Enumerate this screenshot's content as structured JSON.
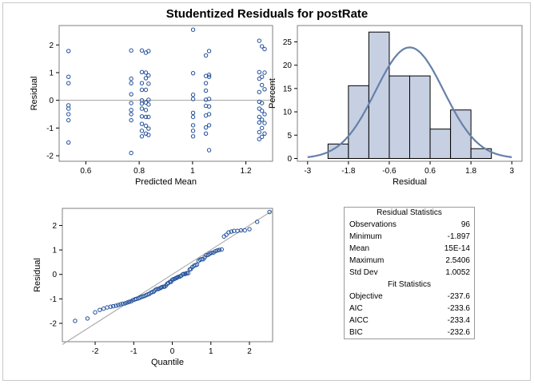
{
  "title": "Studentized Residuals for postRate",
  "chart_data": [
    {
      "type": "scatter",
      "panel": "residual-vs-predicted",
      "xlabel": "Predicted Mean",
      "ylabel": "Residual",
      "xlim": [
        0.5,
        1.3
      ],
      "ylim": [
        -2.2,
        2.7
      ],
      "xticks": [
        0.6,
        0.8,
        1.0,
        1.2
      ],
      "yticks": [
        -2,
        -1,
        0,
        1,
        2
      ],
      "reference_line_y": 0,
      "points": [
        [
          0.535,
          1.78
        ],
        [
          0.535,
          0.85
        ],
        [
          0.535,
          0.62
        ],
        [
          0.535,
          -0.18
        ],
        [
          0.535,
          -0.3
        ],
        [
          0.535,
          -0.5
        ],
        [
          0.535,
          -0.72
        ],
        [
          0.535,
          -1.52
        ],
        [
          0.77,
          1.8
        ],
        [
          0.77,
          0.78
        ],
        [
          0.77,
          0.62
        ],
        [
          0.77,
          0.22
        ],
        [
          0.77,
          -0.1
        ],
        [
          0.77,
          -0.35
        ],
        [
          0.77,
          -0.5
        ],
        [
          0.77,
          -0.72
        ],
        [
          0.77,
          -1.9
        ],
        [
          0.81,
          1.8
        ],
        [
          0.81,
          1.02
        ],
        [
          0.81,
          0.62
        ],
        [
          0.81,
          0.38
        ],
        [
          0.81,
          0.0
        ],
        [
          0.81,
          -0.12
        ],
        [
          0.81,
          -0.3
        ],
        [
          0.81,
          -0.58
        ],
        [
          0.81,
          -0.85
        ],
        [
          0.81,
          -1.1
        ],
        [
          0.81,
          -1.3
        ],
        [
          0.825,
          1.72
        ],
        [
          0.825,
          1.0
        ],
        [
          0.825,
          0.8
        ],
        [
          0.825,
          0.38
        ],
        [
          0.825,
          -0.08
        ],
        [
          0.825,
          -0.35
        ],
        [
          0.825,
          -0.6
        ],
        [
          0.825,
          -0.92
        ],
        [
          0.825,
          -1.2
        ],
        [
          0.835,
          1.78
        ],
        [
          0.835,
          0.9
        ],
        [
          0.835,
          0.6
        ],
        [
          0.835,
          0.02
        ],
        [
          0.835,
          -0.15
        ],
        [
          0.835,
          -0.6
        ],
        [
          0.835,
          -1.02
        ],
        [
          0.835,
          -1.25
        ],
        [
          1.002,
          2.55
        ],
        [
          1.002,
          0.98
        ],
        [
          1.002,
          0.2
        ],
        [
          1.002,
          0.05
        ],
        [
          1.002,
          -0.45
        ],
        [
          1.002,
          -0.6
        ],
        [
          1.002,
          -0.9
        ],
        [
          1.002,
          -1.1
        ],
        [
          1.002,
          -1.3
        ],
        [
          1.05,
          1.62
        ],
        [
          1.05,
          0.88
        ],
        [
          1.05,
          0.62
        ],
        [
          1.05,
          0.35
        ],
        [
          1.05,
          0.02
        ],
        [
          1.05,
          -0.2
        ],
        [
          1.05,
          -0.55
        ],
        [
          1.05,
          -0.98
        ],
        [
          1.05,
          -1.2
        ],
        [
          1.062,
          1.78
        ],
        [
          1.062,
          0.92
        ],
        [
          1.062,
          0.85
        ],
        [
          1.062,
          0.05
        ],
        [
          1.062,
          -0.22
        ],
        [
          1.062,
          -0.5
        ],
        [
          1.062,
          -0.9
        ],
        [
          1.062,
          -1.8
        ],
        [
          1.25,
          2.15
        ],
        [
          1.25,
          1.02
        ],
        [
          1.25,
          0.78
        ],
        [
          1.25,
          0.3
        ],
        [
          1.25,
          -0.05
        ],
        [
          1.25,
          -0.3
        ],
        [
          1.25,
          -0.6
        ],
        [
          1.25,
          -0.8
        ],
        [
          1.25,
          -1.15
        ],
        [
          1.25,
          -1.4
        ],
        [
          1.26,
          1.95
        ],
        [
          1.26,
          0.85
        ],
        [
          1.26,
          0.55
        ],
        [
          1.26,
          -0.1
        ],
        [
          1.26,
          -0.38
        ],
        [
          1.26,
          -0.7
        ],
        [
          1.26,
          -1.0
        ],
        [
          1.26,
          -1.32
        ],
        [
          1.27,
          1.85
        ],
        [
          1.27,
          1.0
        ],
        [
          1.27,
          0.4
        ],
        [
          1.27,
          -0.5
        ],
        [
          1.27,
          -0.82
        ],
        [
          1.27,
          -1.2
        ]
      ]
    },
    {
      "type": "bar",
      "panel": "histogram",
      "xlabel": "Residual",
      "ylabel": "Percent",
      "xlim": [
        -3.3,
        3.3
      ],
      "ylim": [
        -0.6,
        28.5
      ],
      "xticks": [
        -3,
        -1.8,
        -0.6,
        0.6,
        1.8,
        3
      ],
      "xtick_labels": [
        "-3",
        "-1.8",
        "-0.6",
        "0.6",
        "1.8",
        "3"
      ],
      "yticks": [
        0,
        5,
        10,
        15,
        20,
        25
      ],
      "bin_edges": [
        -2.4,
        -1.8,
        -1.2,
        -0.6,
        0.0,
        0.6,
        1.2,
        1.8,
        2.4
      ],
      "values": [
        3.1,
        15.6,
        27.1,
        17.7,
        17.7,
        6.3,
        10.4,
        2.1
      ],
      "density_curve": "normal",
      "curve_mean": 0.0,
      "curve_sd": 1.0052
    },
    {
      "type": "scatter",
      "panel": "qq-plot",
      "xlabel": "Quantile",
      "ylabel": "Residual",
      "xlim": [
        -2.85,
        2.6
      ],
      "ylim": [
        -2.75,
        2.7
      ],
      "xticks": [
        -2,
        -1,
        0,
        1,
        2
      ],
      "yticks": [
        -2,
        -1,
        0,
        1,
        2
      ],
      "reference_line": {
        "intercept": 0.0,
        "slope": 1.0052
      },
      "points": [
        [
          -2.52,
          -1.9
        ],
        [
          -2.2,
          -1.8
        ],
        [
          -2.0,
          -1.55
        ],
        [
          -1.88,
          -1.45
        ],
        [
          -1.78,
          -1.4
        ],
        [
          -1.69,
          -1.35
        ],
        [
          -1.6,
          -1.32
        ],
        [
          -1.53,
          -1.3
        ],
        [
          -1.46,
          -1.28
        ],
        [
          -1.4,
          -1.25
        ],
        [
          -1.34,
          -1.22
        ],
        [
          -1.28,
          -1.2
        ],
        [
          -1.22,
          -1.18
        ],
        [
          -1.17,
          -1.15
        ],
        [
          -1.12,
          -1.12
        ],
        [
          -1.07,
          -1.1
        ],
        [
          -1.02,
          -1.05
        ],
        [
          -0.97,
          -1.02
        ],
        [
          -0.93,
          -1.0
        ],
        [
          -0.88,
          -0.98
        ],
        [
          -0.84,
          -0.95
        ],
        [
          -0.8,
          -0.92
        ],
        [
          -0.76,
          -0.9
        ],
        [
          -0.72,
          -0.88
        ],
        [
          -0.68,
          -0.85
        ],
        [
          -0.64,
          -0.82
        ],
        [
          -0.6,
          -0.8
        ],
        [
          -0.56,
          -0.75
        ],
        [
          -0.52,
          -0.72
        ],
        [
          -0.48,
          -0.7
        ],
        [
          -0.45,
          -0.65
        ],
        [
          -0.41,
          -0.6
        ],
        [
          -0.37,
          -0.6
        ],
        [
          -0.34,
          -0.58
        ],
        [
          -0.3,
          -0.55
        ],
        [
          -0.27,
          -0.52
        ],
        [
          -0.23,
          -0.5
        ],
        [
          -0.2,
          -0.5
        ],
        [
          -0.16,
          -0.45
        ],
        [
          -0.13,
          -0.38
        ],
        [
          -0.1,
          -0.35
        ],
        [
          -0.06,
          -0.3
        ],
        [
          -0.03,
          -0.3
        ],
        [
          0.0,
          -0.22
        ],
        [
          0.03,
          -0.2
        ],
        [
          0.06,
          -0.18
        ],
        [
          0.1,
          -0.15
        ],
        [
          0.13,
          -0.12
        ],
        [
          0.16,
          -0.1
        ],
        [
          0.2,
          -0.08
        ],
        [
          0.23,
          -0.05
        ],
        [
          0.27,
          0.0
        ],
        [
          0.3,
          0.02
        ],
        [
          0.34,
          0.02
        ],
        [
          0.37,
          0.05
        ],
        [
          0.41,
          0.05
        ],
        [
          0.45,
          0.2
        ],
        [
          0.48,
          0.22
        ],
        [
          0.52,
          0.3
        ],
        [
          0.56,
          0.35
        ],
        [
          0.6,
          0.38
        ],
        [
          0.64,
          0.4
        ],
        [
          0.68,
          0.55
        ],
        [
          0.72,
          0.6
        ],
        [
          0.76,
          0.62
        ],
        [
          0.8,
          0.62
        ],
        [
          0.84,
          0.7
        ],
        [
          0.88,
          0.78
        ],
        [
          0.93,
          0.8
        ],
        [
          0.97,
          0.85
        ],
        [
          1.02,
          0.88
        ],
        [
          1.07,
          0.9
        ],
        [
          1.12,
          0.95
        ],
        [
          1.17,
          0.98
        ],
        [
          1.22,
          1.0
        ],
        [
          1.28,
          1.02
        ],
        [
          1.34,
          1.55
        ],
        [
          1.4,
          1.62
        ],
        [
          1.46,
          1.72
        ],
        [
          1.53,
          1.75
        ],
        [
          1.6,
          1.78
        ],
        [
          1.69,
          1.78
        ],
        [
          1.78,
          1.8
        ],
        [
          1.88,
          1.8
        ],
        [
          2.0,
          1.85
        ],
        [
          2.2,
          2.15
        ],
        [
          2.52,
          2.55
        ]
      ]
    }
  ],
  "stats_table": {
    "residual_header": "Residual Statistics",
    "residual_rows": [
      {
        "label": "Observations",
        "value": "96"
      },
      {
        "label": "Minimum",
        "value": "-1.897"
      },
      {
        "label": "Mean",
        "value": "15E-14"
      },
      {
        "label": "Maximum",
        "value": "2.5406"
      },
      {
        "label": "Std Dev",
        "value": "1.0052"
      }
    ],
    "fit_header": "Fit Statistics",
    "fit_rows": [
      {
        "label": "Objective",
        "value": "-237.6"
      },
      {
        "label": "AIC",
        "value": "-233.6"
      },
      {
        "label": "AICC",
        "value": "-233.4"
      },
      {
        "label": "BIC",
        "value": "-232.6"
      }
    ]
  },
  "colors": {
    "marker": "#1f4e9a",
    "bar_fill": "#c6d0e2",
    "curve": "#6680a8",
    "refline": "#a0a0a0"
  }
}
